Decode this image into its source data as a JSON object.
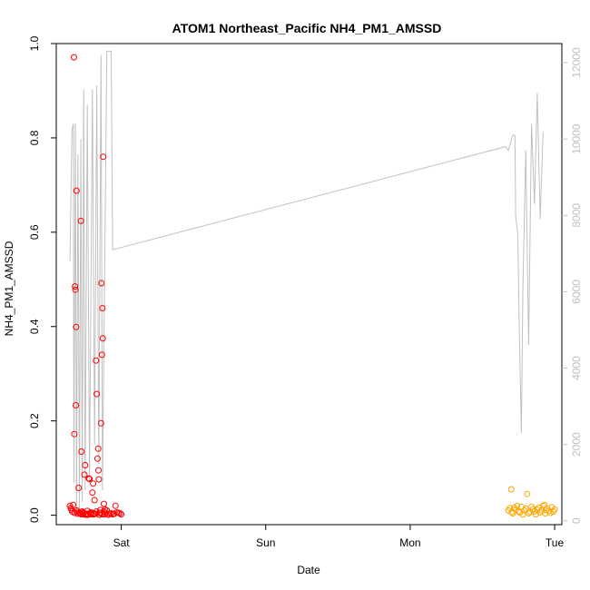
{
  "chart_data": {
    "type": "scatter",
    "title": "ATOM1 Northeast_Pacific NH4_PM1_AMSSD",
    "xlabel": "Date",
    "ylabel": "NH4_PM1_AMSSD",
    "x_tick_labels": [
      "Sat",
      "Sun",
      "Mon",
      "Tue"
    ],
    "x_tick_values": [
      1,
      2,
      3,
      4
    ],
    "xlim": [
      0.55,
      4.05
    ],
    "ylim": [
      -0.02,
      1.0
    ],
    "y_ticks": [
      "0.0",
      "0.2",
      "0.4",
      "0.6",
      "0.8",
      "1.0"
    ],
    "y2lim": [
      -100,
      12500
    ],
    "y2_ticks": [
      "0",
      "2000",
      "4000",
      "6000",
      "8000",
      "10000",
      "12000"
    ],
    "grid": false,
    "legend": "none",
    "colors": {
      "series_red": "#ff0000",
      "series_orange": "#ffa500",
      "altitude_line": "#c0c0c0",
      "axis": "#000000",
      "right_axis": "#c0c0c0"
    },
    "series": [
      {
        "values": [
          [
            0.645,
            0.02
          ],
          [
            0.65,
            0.015
          ],
          [
            0.655,
            0.012
          ],
          [
            0.66,
            0.008
          ],
          [
            0.667,
            0.022
          ],
          [
            0.672,
            0.971
          ],
          [
            0.675,
            0.172
          ],
          [
            0.677,
            0.005
          ],
          [
            0.68,
            0.485
          ],
          [
            0.682,
            0.478
          ],
          [
            0.685,
            0.233
          ],
          [
            0.687,
            0.399
          ],
          [
            0.69,
            0.688
          ],
          [
            0.692,
            0.01
          ],
          [
            0.695,
            0.007
          ],
          [
            0.698,
            0.003
          ],
          [
            0.705,
            0.058
          ],
          [
            0.71,
            0.005
          ],
          [
            0.72,
            0.624
          ],
          [
            0.725,
            0.135
          ],
          [
            0.73,
            0.008
          ],
          [
            0.735,
            0.002
          ],
          [
            0.74,
            0.004
          ],
          [
            0.745,
            0.086
          ],
          [
            0.75,
            0.106
          ],
          [
            0.755,
            0.001
          ],
          [
            0.76,
            0.002
          ],
          [
            0.765,
            0.009
          ],
          [
            0.77,
            0.001
          ],
          [
            0.775,
            0.078
          ],
          [
            0.78,
            0.077
          ],
          [
            0.785,
            0.003
          ],
          [
            0.79,
            0.006
          ],
          [
            0.795,
            0.002
          ],
          [
            0.8,
            0.048
          ],
          [
            0.805,
            0.067
          ],
          [
            0.81,
            0.004
          ],
          [
            0.815,
            0.032
          ],
          [
            0.82,
            0.003
          ],
          [
            0.825,
            0.328
          ],
          [
            0.83,
            0.257
          ],
          [
            0.835,
            0.12
          ],
          [
            0.84,
            0.141
          ],
          [
            0.842,
            0.095
          ],
          [
            0.845,
            0.076
          ],
          [
            0.85,
            0.005
          ],
          [
            0.855,
            0.011
          ],
          [
            0.86,
            0.195
          ],
          [
            0.863,
            0.492
          ],
          [
            0.866,
            0.34
          ],
          [
            0.869,
            0.439
          ],
          [
            0.872,
            0.375
          ],
          [
            0.875,
            0.76
          ],
          [
            0.878,
            0.008
          ],
          [
            0.88,
            0.024
          ],
          [
            0.885,
            0.002
          ],
          [
            0.89,
            0.005
          ],
          [
            0.9,
            0.01
          ],
          [
            0.91,
            0.001
          ],
          [
            0.92,
            0.003
          ],
          [
            0.93,
            0.004
          ],
          [
            0.94,
            0.002
          ],
          [
            0.95,
            0.003
          ],
          [
            0.96,
            0.02
          ],
          [
            0.97,
            0.006
          ],
          [
            0.98,
            0.005
          ],
          [
            0.99,
            0.004
          ],
          [
            1.0,
            0.002
          ],
          [
            0.715,
            0.004
          ],
          [
            0.725,
            0.002
          ],
          [
            0.738,
            0.006
          ],
          [
            0.758,
            0.001
          ],
          [
            0.768,
            0.003
          ],
          [
            0.788,
            0.005
          ],
          [
            0.808,
            0.002
          ],
          [
            0.828,
            0.008
          ],
          [
            0.848,
            0.001
          ],
          [
            0.858,
            0.005
          ],
          [
            0.868,
            0.002
          ],
          [
            0.888,
            0.012
          ]
        ]
      },
      {
        "values": [
          [
            3.68,
            0.01
          ],
          [
            3.69,
            0.015
          ],
          [
            3.7,
            0.055
          ],
          [
            3.705,
            0.007
          ],
          [
            3.71,
            0.004
          ],
          [
            3.72,
            0.016
          ],
          [
            3.73,
            0.012
          ],
          [
            3.74,
            0.02
          ],
          [
            3.75,
            0.008
          ],
          [
            3.76,
            0.006
          ],
          [
            3.77,
            0.018
          ],
          [
            3.78,
            0.002
          ],
          [
            3.79,
            0.01
          ],
          [
            3.8,
            0.014
          ],
          [
            3.81,
            0.045
          ],
          [
            3.82,
            0.004
          ],
          [
            3.83,
            0.007
          ],
          [
            3.84,
            0.018
          ],
          [
            3.85,
            0.013
          ],
          [
            3.86,
            0.008
          ],
          [
            3.87,
            0.002
          ],
          [
            3.88,
            0.012
          ],
          [
            3.89,
            0.016
          ],
          [
            3.9,
            0.006
          ],
          [
            3.91,
            0.01
          ],
          [
            3.92,
            0.02
          ],
          [
            3.93,
            0.022
          ],
          [
            3.935,
            0.004
          ],
          [
            3.94,
            0.011
          ],
          [
            3.95,
            0.014
          ],
          [
            3.96,
            0.009
          ],
          [
            3.97,
            0.005
          ],
          [
            3.98,
            0.017
          ],
          [
            3.99,
            0.008
          ],
          [
            4.0,
            0.012
          ]
        ]
      },
      {
        "axis": "right",
        "values": [
          [
            0.645,
            6800
          ],
          [
            0.658,
            10200
          ],
          [
            0.668,
            10400
          ],
          [
            0.672,
            1000
          ],
          [
            0.682,
            10400
          ],
          [
            0.69,
            200
          ],
          [
            0.7,
            9600
          ],
          [
            0.71,
            300
          ],
          [
            0.72,
            10000
          ],
          [
            0.73,
            500
          ],
          [
            0.74,
            11300
          ],
          [
            0.75,
            800
          ],
          [
            0.765,
            10900
          ],
          [
            0.78,
            1000
          ],
          [
            0.8,
            11300
          ],
          [
            0.815,
            2000
          ],
          [
            0.83,
            11400
          ],
          [
            0.845,
            1500
          ],
          [
            0.86,
            12200
          ],
          [
            0.87,
            800
          ],
          [
            0.9,
            12300
          ],
          [
            0.93,
            12300
          ],
          [
            0.94,
            7100
          ],
          [
            3.66,
            9800
          ],
          [
            3.68,
            9700
          ],
          [
            3.71,
            10100
          ],
          [
            3.725,
            10100
          ],
          [
            3.73,
            8000
          ],
          [
            3.745,
            7500
          ],
          [
            3.755,
            5000
          ],
          [
            3.77,
            2300
          ],
          [
            3.78,
            6000
          ],
          [
            3.8,
            9700
          ],
          [
            3.82,
            4600
          ],
          [
            3.84,
            10400
          ],
          [
            3.86,
            8300
          ],
          [
            3.88,
            11200
          ],
          [
            3.9,
            7900
          ],
          [
            3.92,
            10200
          ]
        ]
      }
    ]
  }
}
